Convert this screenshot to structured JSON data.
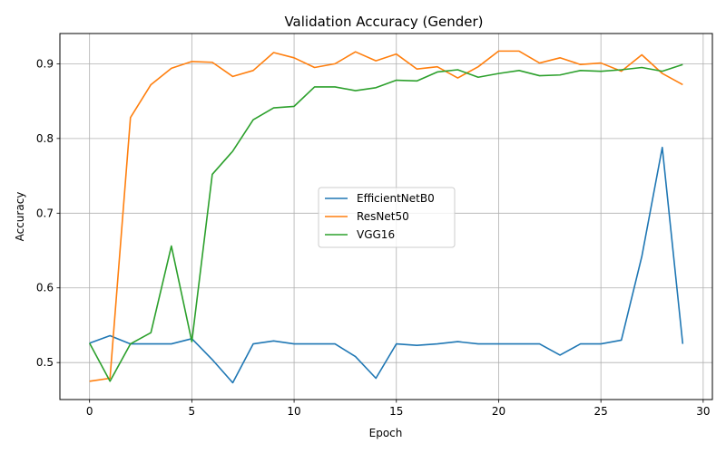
{
  "chart_data": {
    "type": "line",
    "title": "Validation Accuracy (Gender)",
    "xlabel": "Epoch",
    "ylabel": "Accuracy",
    "xlim": [
      -1.45,
      30.45
    ],
    "ylim": [
      0.4505,
      0.9405
    ],
    "xticks": [
      0,
      5,
      10,
      15,
      20,
      25,
      30
    ],
    "yticks": [
      0.5,
      0.6,
      0.7,
      0.8,
      0.9
    ],
    "grid": true,
    "legend_position": "center",
    "x": [
      0,
      1,
      2,
      3,
      4,
      5,
      6,
      7,
      8,
      9,
      10,
      11,
      12,
      13,
      14,
      15,
      16,
      17,
      18,
      19,
      20,
      21,
      22,
      23,
      24,
      25,
      26,
      27,
      28,
      29
    ],
    "series": [
      {
        "name": "EfficientNetB0",
        "color": "#1f77b4",
        "values": [
          0.526,
          0.536,
          0.525,
          0.525,
          0.525,
          0.532,
          0.504,
          0.473,
          0.525,
          0.529,
          0.525,
          0.525,
          0.525,
          0.508,
          0.479,
          0.525,
          0.523,
          0.525,
          0.528,
          0.525,
          0.525,
          0.525,
          0.525,
          0.51,
          0.525,
          0.525,
          0.53,
          0.642,
          0.788,
          0.525
        ]
      },
      {
        "name": "ResNet50",
        "color": "#ff7f0e",
        "values": [
          0.475,
          0.479,
          0.828,
          0.872,
          0.894,
          0.903,
          0.902,
          0.883,
          0.891,
          0.915,
          0.908,
          0.895,
          0.9,
          0.916,
          0.904,
          0.913,
          0.893,
          0.896,
          0.881,
          0.896,
          0.917,
          0.917,
          0.901,
          0.908,
          0.899,
          0.901,
          0.89,
          0.912,
          0.887,
          0.872
        ]
      },
      {
        "name": "VGG16",
        "color": "#2ca02c",
        "values": [
          0.526,
          0.475,
          0.525,
          0.54,
          0.656,
          0.528,
          0.752,
          0.783,
          0.825,
          0.841,
          0.843,
          0.869,
          0.869,
          0.864,
          0.868,
          0.878,
          0.877,
          0.889,
          0.892,
          0.882,
          0.887,
          0.891,
          0.884,
          0.885,
          0.891,
          0.89,
          0.892,
          0.895,
          0.89,
          0.899
        ]
      }
    ]
  }
}
